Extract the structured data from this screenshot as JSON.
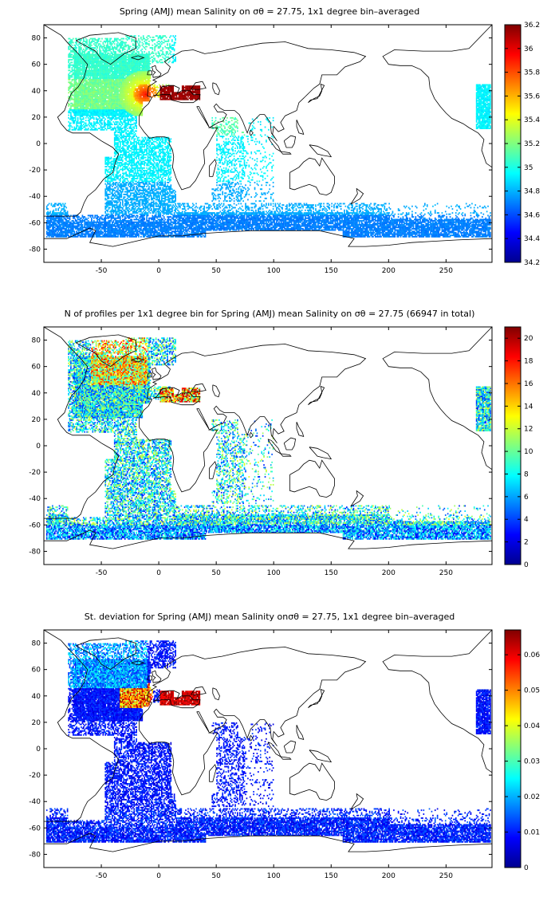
{
  "chart_data": [
    {
      "type": "heatmap",
      "title": "Spring (AMJ) mean Salinity on σθ = 27.75, 1x1 degree bin–averaged",
      "xlim": [
        -100,
        290
      ],
      "ylim": [
        -90,
        90
      ],
      "xticks": [
        -50,
        0,
        50,
        100,
        150,
        200,
        250
      ],
      "yticks": [
        80,
        60,
        40,
        20,
        0,
        -20,
        -40,
        -60,
        -80
      ],
      "xtick_labels": [
        "-50",
        "0",
        "50",
        "100",
        "150",
        "200",
        "250"
      ],
      "ytick_labels": [
        "80",
        "60",
        "40",
        "20",
        "0",
        "-20",
        "-40",
        "-60",
        "-80"
      ],
      "colorbar": {
        "min": 34.2,
        "max": 36.2,
        "ticks": [
          "36.2",
          "36",
          "35.8",
          "35.6",
          "35.4",
          "35.2",
          "35",
          "34.8",
          "34.6",
          "34.4",
          "34.2"
        ]
      },
      "field": "salinity"
    },
    {
      "type": "heatmap",
      "title": "N of profiles per 1x1 degree bin for Spring (AMJ) mean Salinity on σθ = 27.75 (66947 in total)",
      "xlim": [
        -100,
        290
      ],
      "ylim": [
        -90,
        90
      ],
      "xticks": [
        -50,
        0,
        50,
        100,
        150,
        200,
        250
      ],
      "yticks": [
        80,
        60,
        40,
        20,
        0,
        -20,
        -40,
        -60,
        -80
      ],
      "xtick_labels": [
        "-50",
        "0",
        "50",
        "100",
        "150",
        "200",
        "250"
      ],
      "ytick_labels": [
        "80",
        "60",
        "40",
        "20",
        "0",
        "-20",
        "-40",
        "-60",
        "-80"
      ],
      "colorbar": {
        "min": 0,
        "max": 21,
        "ticks": [
          "20",
          "18",
          "16",
          "14",
          "12",
          "10",
          "8",
          "6",
          "4",
          "2",
          "0"
        ]
      },
      "field": "count"
    },
    {
      "type": "heatmap",
      "title": "St. deviation for Spring (AMJ) mean Salinity onσθ = 27.75, 1x1 degree bin–averaged",
      "xlim": [
        -100,
        290
      ],
      "ylim": [
        -90,
        90
      ],
      "xticks": [
        -50,
        0,
        50,
        100,
        150,
        200,
        250
      ],
      "yticks": [
        80,
        60,
        40,
        20,
        0,
        -20,
        -40,
        -60,
        -80
      ],
      "xtick_labels": [
        "-50",
        "0",
        "50",
        "100",
        "150",
        "200",
        "250"
      ],
      "ytick_labels": [
        "80",
        "60",
        "40",
        "20",
        "0",
        "-20",
        "-40",
        "-60",
        "-80"
      ],
      "colorbar": {
        "min": 0,
        "max": 0.067,
        "ticks": [
          "0.06",
          "0.05",
          "0.04",
          "0.03",
          "0.02",
          "0.01",
          "0"
        ]
      },
      "field": "stdev"
    }
  ]
}
